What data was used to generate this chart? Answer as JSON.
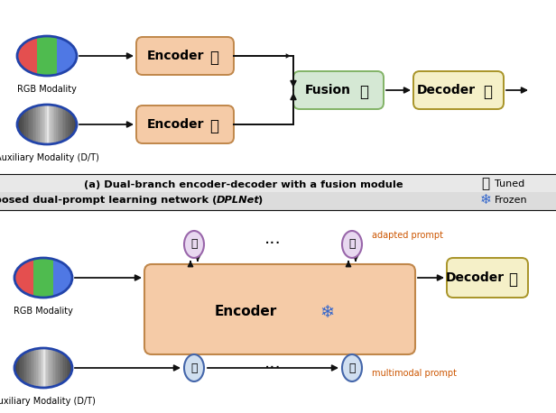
{
  "fig_width": 6.16,
  "fig_height": 4.58,
  "dpi": 100,
  "encoder_box_color": "#f5cba7",
  "encoder_border_color": "#c0874a",
  "fusion_box_color": "#d5e8d4",
  "fusion_border_color": "#82b366",
  "decoder_box_color": "#f5f0c8",
  "decoder_border_color": "#a89428",
  "prompt_top_color": "#e8d8f0",
  "prompt_top_border": "#9966aa",
  "prompt_bot_color": "#d0dff0",
  "prompt_bot_border": "#4466aa",
  "label_bar_a_color": "#e8e8e8",
  "label_bar_b_color": "#d8d8d8",
  "orange_color": "#cc5500",
  "arrow_color": "#111111",
  "title_a": "(a) Dual-branch encoder-decoder with a fusion module",
  "title_b_pre": "(b) Proposed dual-prompt learning network (",
  "title_b_italic": "DPLNet",
  "title_b_post": ")",
  "legend_tuned": "Tuned",
  "legend_frozen": "Frozen"
}
